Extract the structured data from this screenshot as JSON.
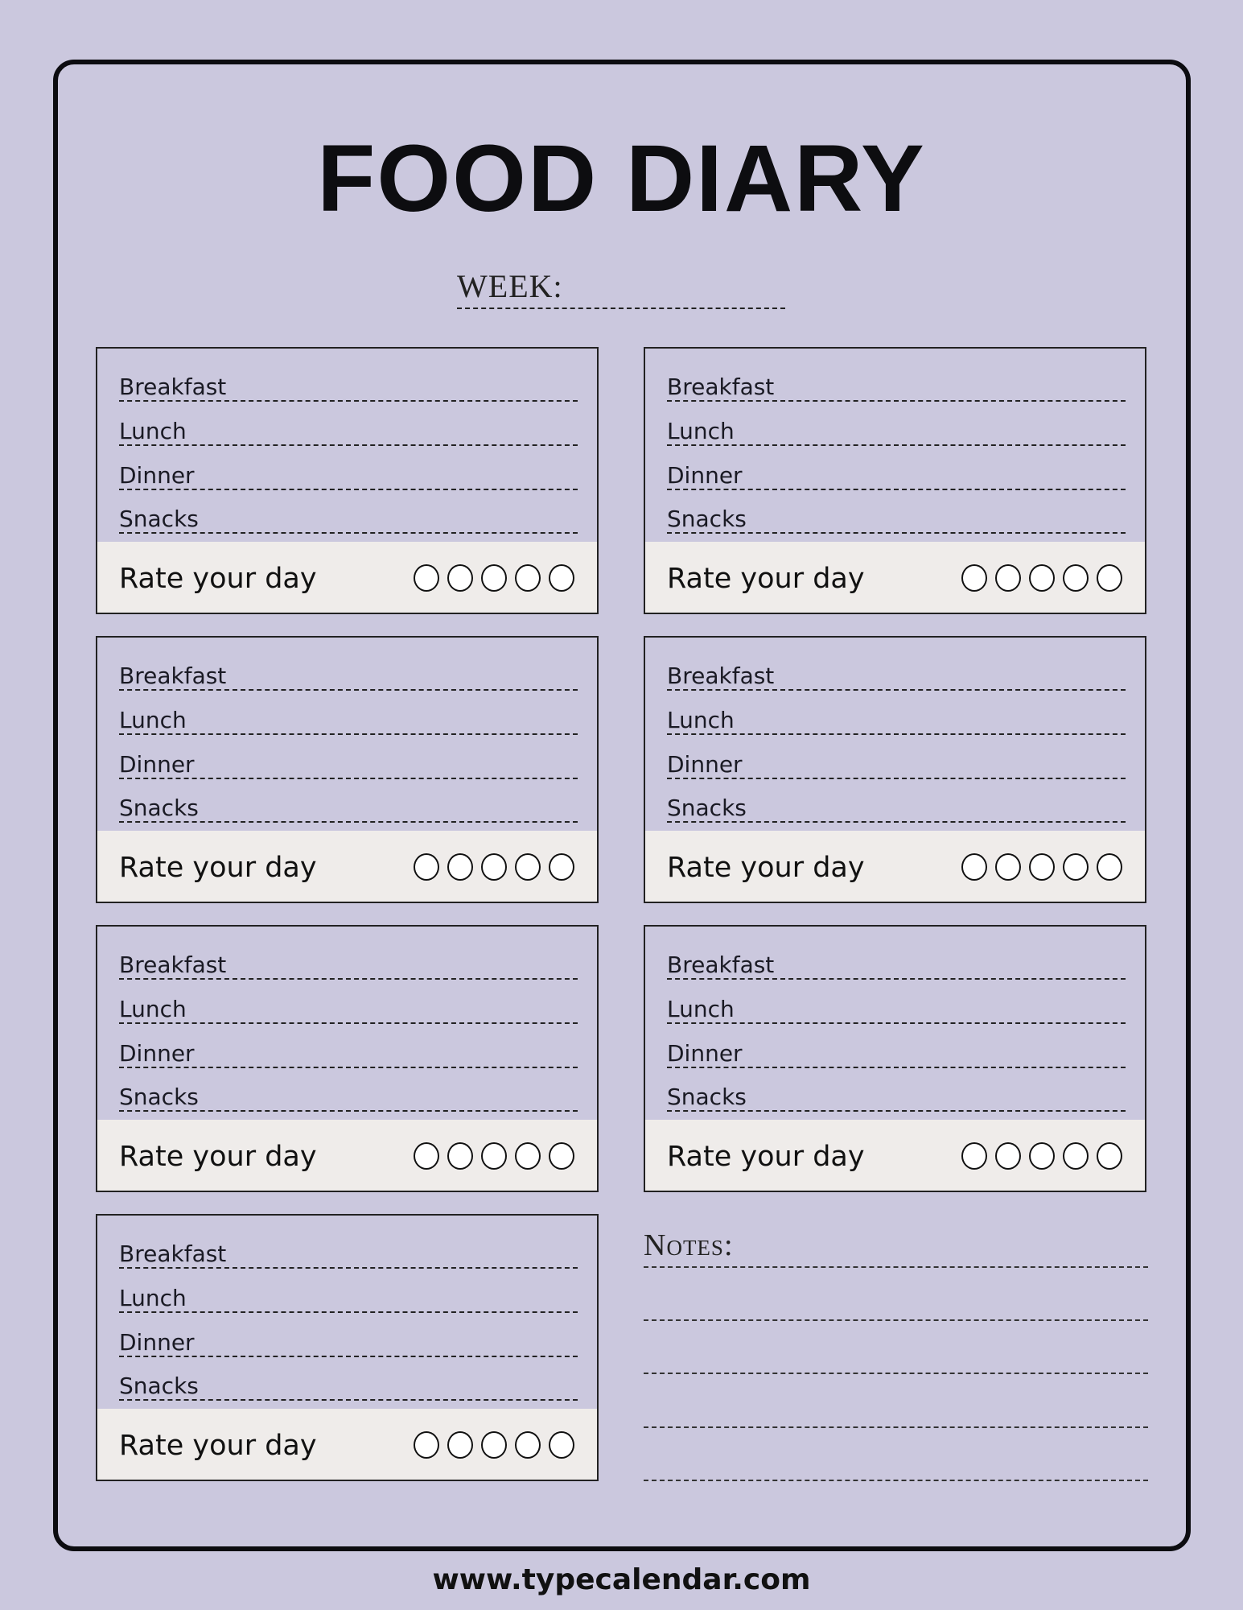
{
  "title": "FOOD DIARY",
  "week_label": "WEEK:",
  "days": [
    {
      "meals": [
        "Breakfast",
        "Lunch",
        "Dinner",
        "Snacks"
      ],
      "rate_label": "Rate your day",
      "rating": 0
    },
    {
      "meals": [
        "Breakfast",
        "Lunch",
        "Dinner",
        "Snacks"
      ],
      "rate_label": "Rate your day",
      "rating": 0
    },
    {
      "meals": [
        "Breakfast",
        "Lunch",
        "Dinner",
        "Snacks"
      ],
      "rate_label": "Rate your day",
      "rating": 0
    },
    {
      "meals": [
        "Breakfast",
        "Lunch",
        "Dinner",
        "Snacks"
      ],
      "rate_label": "Rate your day",
      "rating": 0
    },
    {
      "meals": [
        "Breakfast",
        "Lunch",
        "Dinner",
        "Snacks"
      ],
      "rate_label": "Rate your day",
      "rating": 0
    },
    {
      "meals": [
        "Breakfast",
        "Lunch",
        "Dinner",
        "Snacks"
      ],
      "rate_label": "Rate your day",
      "rating": 0
    },
    {
      "meals": [
        "Breakfast",
        "Lunch",
        "Dinner",
        "Snacks"
      ],
      "rate_label": "Rate your day",
      "rating": 0
    }
  ],
  "rating_max": 5,
  "notes_label": "Notes:",
  "footer": "www.typecalendar.com",
  "colors": {
    "background": "#cbc8de",
    "rating_band": "#efecea",
    "ink": "#111111"
  }
}
